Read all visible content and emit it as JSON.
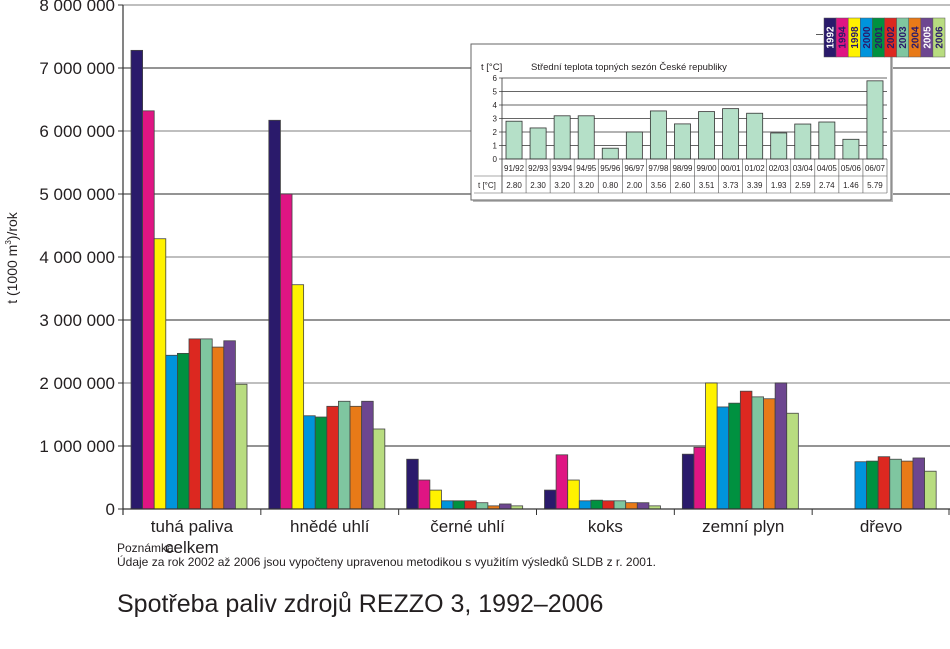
{
  "chart_data": [
    {
      "type": "bar",
      "title": "Spotřeba paliv zdrojů REZZO 3, 1992–2006",
      "ylabel": "t (1000 m3)/rok",
      "ylabel_parts": {
        "pre": "t (1000 m",
        "sup": "3",
        "post": ")/rok"
      },
      "xlabel": "",
      "ylim": [
        0,
        8000000
      ],
      "grid": true,
      "legend_position": "top-right",
      "yticks": [
        0,
        1000000,
        2000000,
        3000000,
        4000000,
        5000000,
        6000000,
        7000000,
        8000000
      ],
      "ytick_labels": [
        "0",
        "1 000 000",
        "2 000 000",
        "3 000 000",
        "4 000 000",
        "5 000 000",
        "6 000 000",
        "7 000 000",
        "8 000 000"
      ],
      "categories": [
        [
          "tuhá paliva",
          "celkem"
        ],
        [
          "hnědé uhlí"
        ],
        [
          "černé uhlí"
        ],
        [
          "koks"
        ],
        [
          "zemní plyn"
        ],
        [
          "dřevo"
        ]
      ],
      "series": [
        {
          "name": "1992",
          "color": "#2a1a6b",
          "text_color": "#ffffff",
          "values": [
            7280000,
            6170000,
            790000,
            300000,
            870000,
            null
          ]
        },
        {
          "name": "1994",
          "color": "#df1583",
          "text_color": "#2a1a6b",
          "values": [
            6320000,
            5000000,
            460000,
            860000,
            980000,
            null
          ]
        },
        {
          "name": "1998",
          "color": "#fff200",
          "text_color": "#2a1a6b",
          "values": [
            4290000,
            3560000,
            300000,
            460000,
            2000000,
            null
          ]
        },
        {
          "name": "2000",
          "color": "#0094dc",
          "text_color": "#2a1a6b",
          "values": [
            2440000,
            1480000,
            130000,
            130000,
            1620000,
            750000
          ]
        },
        {
          "name": "2001",
          "color": "#009140",
          "text_color": "#2a1a6b",
          "values": [
            2470000,
            1460000,
            130000,
            140000,
            1680000,
            760000
          ]
        },
        {
          "name": "2002",
          "color": "#dc2820",
          "text_color": "#2a1a6b",
          "values": [
            2700000,
            1630000,
            130000,
            130000,
            1870000,
            830000
          ]
        },
        {
          "name": "2003",
          "color": "#7fc6a0",
          "text_color": "#2a1a6b",
          "values": [
            2700000,
            1710000,
            100000,
            130000,
            1780000,
            790000
          ]
        },
        {
          "name": "2004",
          "color": "#e87a18",
          "text_color": "#2a1a6b",
          "values": [
            2570000,
            1630000,
            50000,
            100000,
            1750000,
            760000
          ]
        },
        {
          "name": "2005",
          "color": "#6d4690",
          "text_color": "#ffffff",
          "values": [
            2670000,
            1710000,
            80000,
            100000,
            2000000,
            810000
          ]
        },
        {
          "name": "2006",
          "color": "#b8dc80",
          "text_color": "#2a1a6b",
          "values": [
            1980000,
            1270000,
            50000,
            50000,
            1520000,
            600000
          ]
        }
      ]
    },
    {
      "type": "bar",
      "title": "Střední teplota topných sezón České republiky",
      "ylabel": "t [°C]",
      "row_label": "t [°C]",
      "ylim": [
        0,
        6
      ],
      "yticks": [
        0,
        1,
        2,
        3,
        4,
        5,
        6
      ],
      "bar_color": "#b5e0c8",
      "categories": [
        "91/92",
        "92/93",
        "93/94",
        "94/95",
        "95/96",
        "96/97",
        "97/98",
        "98/99",
        "99/00",
        "00/01",
        "01/02",
        "02/03",
        "03/04",
        "04/05",
        "05/06",
        "06/07"
      ],
      "values": [
        2.8,
        2.3,
        3.2,
        3.2,
        0.8,
        2.0,
        3.56,
        2.6,
        3.51,
        3.73,
        3.39,
        1.93,
        2.59,
        2.74,
        1.46,
        5.79
      ],
      "value_labels": [
        "2.80",
        "2.30",
        "3.20",
        "3.20",
        "0.80",
        "2.00",
        "3.56",
        "2.60",
        "3.51",
        "3.73",
        "3.39",
        "1.93",
        "2.59",
        "2.74",
        "1.46",
        "5.79"
      ]
    }
  ],
  "note": {
    "label": "Poznámka:",
    "text": "Údaje za rok 2002 až 2006 jsou vypočteny upravenou metodikou s využitím výsledků SLDB z r. 2001."
  },
  "page_title": "Spotřeba paliv zdrojů REZZO 3, 1992–2006"
}
